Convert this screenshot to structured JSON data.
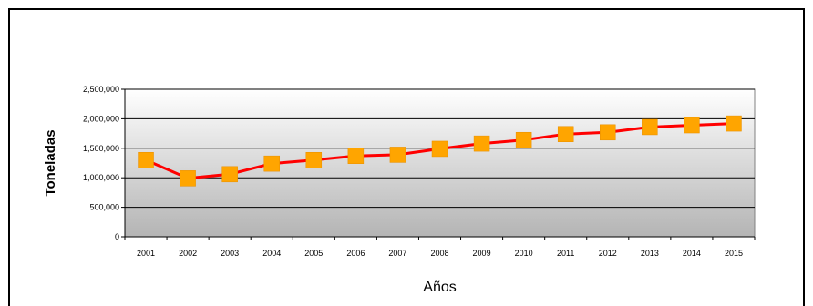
{
  "chart_data": {
    "type": "line",
    "title": "",
    "xlabel": "Años",
    "ylabel": "Toneladas",
    "categories": [
      "2001",
      "2002",
      "2003",
      "2004",
      "2005",
      "2006",
      "2007",
      "2008",
      "2009",
      "2010",
      "2011",
      "2012",
      "2013",
      "2014",
      "2015"
    ],
    "series": [
      {
        "values": [
          1300000,
          990000,
          1060000,
          1240000,
          1300000,
          1370000,
          1390000,
          1490000,
          1580000,
          1640000,
          1740000,
          1770000,
          1860000,
          1890000,
          1920000
        ],
        "line_color": "#ff0000",
        "marker_color": "#ffa500",
        "marker": "square"
      }
    ],
    "ylim": [
      0,
      2500000
    ],
    "yticks": [
      0,
      500000,
      1000000,
      1500000,
      2000000,
      2500000
    ],
    "ytick_labels": [
      "0",
      "500,000",
      "1,000,000",
      "1,500,000",
      "2,000,000",
      "2,500,000"
    ],
    "grid": true,
    "legend": "none",
    "plot_background": "gradient gray"
  }
}
